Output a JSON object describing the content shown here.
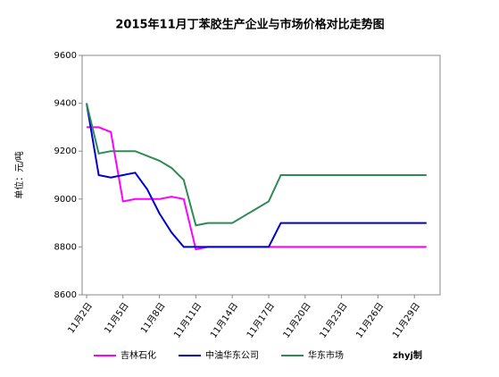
{
  "chart_data": {
    "type": "line",
    "title": "2015年11月丁苯胶生产企业与市场价格对比走势图",
    "y_label": "单位：元/吨",
    "annotation": "zhyj制",
    "categories": [
      "11月2日",
      null,
      null,
      "11月5日",
      null,
      null,
      "11月8日",
      null,
      null,
      "11月11日",
      null,
      null,
      "11月14日",
      null,
      null,
      "11月17日",
      null,
      null,
      "11月20日",
      null,
      null,
      "11月23日",
      null,
      null,
      "11月26日",
      null,
      null,
      "11月29日",
      null
    ],
    "series": [
      {
        "name": "吉林石化",
        "color": "#ff00ff",
        "values": [
          9300,
          9300,
          9280,
          8990,
          9000,
          9000,
          9000,
          9010,
          9000,
          8790,
          8800,
          8800,
          8800,
          8800,
          8800,
          8800,
          8800,
          8800,
          8800,
          8800,
          8800,
          8800,
          8800,
          8800,
          8800,
          8800,
          8800,
          8800,
          8800
        ]
      },
      {
        "name": "中油华东公司",
        "color": "#0000cc",
        "values": [
          9400,
          9100,
          9090,
          9100,
          9110,
          9040,
          8940,
          8860,
          8800,
          8800,
          8800,
          8800,
          8800,
          8800,
          8800,
          8800,
          8900,
          8900,
          8900,
          8900,
          8900,
          8900,
          8900,
          8900,
          8900,
          8900,
          8900,
          8900,
          8900
        ]
      },
      {
        "name": "华东市场",
        "color": "#2e8b57",
        "values": [
          9400,
          9190,
          9200,
          9200,
          9200,
          9180,
          9160,
          9130,
          9080,
          8890,
          8900,
          8900,
          8900,
          8930,
          8960,
          8990,
          9100,
          9100,
          9100,
          9100,
          9100,
          9100,
          9100,
          9100,
          9100,
          9100,
          9100,
          9100,
          9100
        ]
      }
    ],
    "ylim": [
      8600,
      9600
    ],
    "yticks": [
      8600,
      8800,
      9000,
      9200,
      9400,
      9600
    ]
  }
}
